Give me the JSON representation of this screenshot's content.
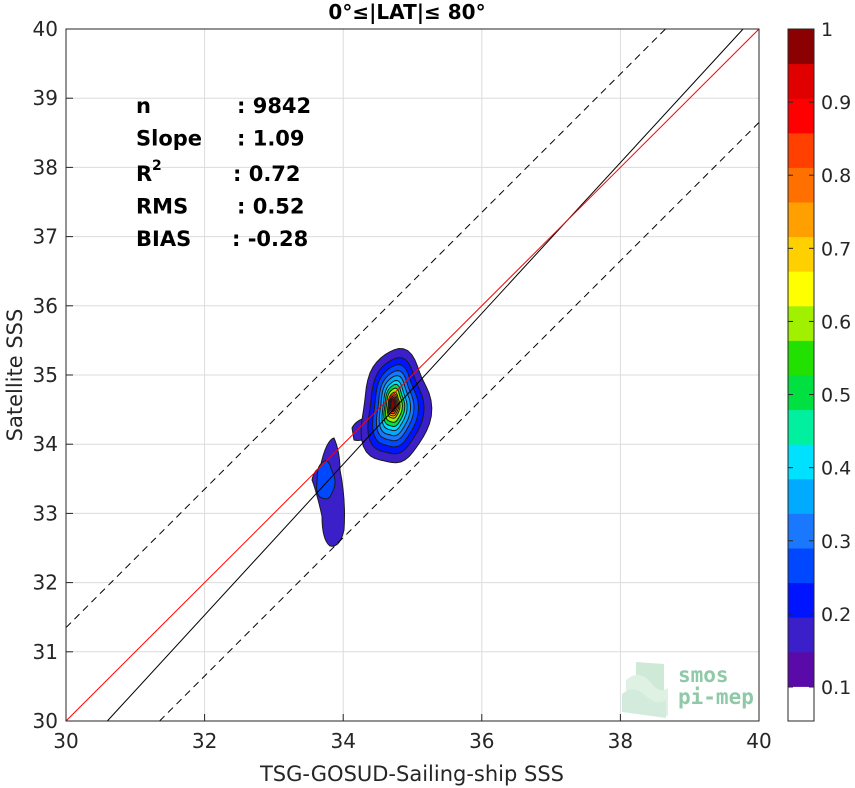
{
  "chart_data": {
    "type": "scatter",
    "title": "0°≤|LAT|≤ 80°",
    "xlabel": "TSG-GOSUD-Sailing-ship SSS",
    "ylabel": "Satellite SSS",
    "xlim": [
      30,
      40
    ],
    "ylim": [
      30,
      40
    ],
    "xticks": [
      "30",
      "32",
      "34",
      "36",
      "38",
      "40"
    ],
    "yticks": [
      "30",
      "31",
      "32",
      "33",
      "34",
      "35",
      "36",
      "37",
      "38",
      "39",
      "40"
    ],
    "grid": true,
    "stats": [
      {
        "label": "n",
        "value": ": 9842"
      },
      {
        "label": "Slope",
        "value": ": 1.09"
      },
      {
        "label": "R",
        "sup": "2",
        "value": ": 0.72"
      },
      {
        "label": "RMS",
        "value": ": 0.52"
      },
      {
        "label": "BIAS",
        "value": ": -0.28"
      }
    ],
    "lines": {
      "identity": {
        "slope": 1,
        "intercept": 0,
        "color": "#ff0000"
      },
      "fit": {
        "slope": 1.09,
        "intercept": -3.35,
        "color": "#000000"
      },
      "bounds_offset": 1.35
    },
    "density_clusters": [
      {
        "center": [
          34.75,
          34.55
        ],
        "levels": 10
      },
      {
        "center": [
          33.8,
          33.4
        ],
        "levels": 2
      }
    ],
    "colorbar": {
      "ticks": [
        "0.1",
        "0.2",
        "0.3",
        "0.4",
        "0.5",
        "0.6",
        "0.7",
        "0.8",
        "0.9",
        "1"
      ],
      "colors": [
        "#ffffff",
        "#5a0aa8",
        "#3b1fc8",
        "#0014ff",
        "#0048ff",
        "#1a78ff",
        "#00aaff",
        "#00e0ff",
        "#00f0a0",
        "#00e040",
        "#22e000",
        "#a0f000",
        "#ffff00",
        "#ffd000",
        "#ffa000",
        "#ff7000",
        "#ff4000",
        "#ff0000",
        "#e00000",
        "#8b0000"
      ]
    },
    "watermark": {
      "line1": "smos",
      "line2": "pi-mep"
    }
  }
}
